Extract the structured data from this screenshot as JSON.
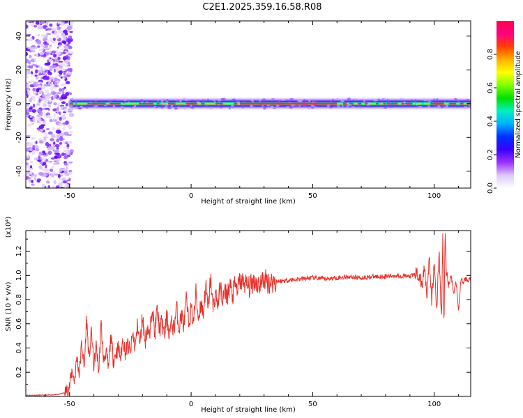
{
  "figure_title": "C2E1.2025.359.16.58.R08",
  "chart_data": [
    {
      "type": "heatmap",
      "title": "C2E1.2025.359.16.58.R08",
      "xlabel": "Height of straight line (km)",
      "ylabel": "Frequency (Hz)",
      "xlim": [
        -68,
        115
      ],
      "ylim": [
        -50,
        49
      ],
      "x_ticks": [
        -50,
        0,
        50,
        100
      ],
      "x_tick_labels": [
        "-50",
        "0",
        "50",
        "100"
      ],
      "y_ticks": [
        40,
        20,
        0,
        -20,
        -40
      ],
      "y_tick_labels": [
        "40",
        "20",
        "0",
        "-20",
        "-40"
      ],
      "signal_track": {
        "frequency_hz": 0,
        "start_km": -50,
        "end_km": 115,
        "description_noise_region_km": [
          -68,
          -50
        ]
      },
      "colorbar": {
        "label": "Normalized spectral amplitude",
        "range": [
          0,
          1
        ],
        "ticks": [
          0.0,
          0.2,
          0.4,
          0.6,
          0.8
        ],
        "tick_labels": [
          "0.0",
          "0.2",
          "0.4",
          "0.6",
          "0.8"
        ],
        "colors": [
          "#ffffff",
          "#dcc8ff",
          "#9b30ff",
          "#3a00ff",
          "#0030ff",
          "#00b0ff",
          "#00f0c0",
          "#00e000",
          "#80ff00",
          "#ffff00",
          "#ffb000",
          "#ff4000",
          "#ff0080",
          "#ff0050"
        ]
      }
    },
    {
      "type": "line",
      "xlabel": "Height of straight line (km)",
      "ylabel": "SNR (10 * v/v)",
      "y_multiplier": "(x10⁴)",
      "xlim": [
        -68,
        115
      ],
      "ylim": [
        0,
        1.37
      ],
      "x_ticks": [
        -50,
        0,
        50,
        100
      ],
      "x_tick_labels": [
        "-50",
        "0",
        "50",
        "100"
      ],
      "y_ticks": [
        0.2,
        0.4,
        0.6,
        0.8,
        1.0,
        1.2
      ],
      "y_tick_labels": [
        "0.2",
        "0.4",
        "0.6",
        "0.8",
        "1.0",
        "1.2"
      ],
      "series": [
        {
          "name": "SNR",
          "color": "#e8302a",
          "x": [
            -68,
            -60,
            -55,
            -52,
            -50,
            -49,
            -48,
            -47,
            -46,
            -45,
            -44,
            -43,
            -42,
            -41,
            -40,
            -39,
            -38,
            -37,
            -36,
            -35,
            -34,
            -33,
            -32,
            -31,
            -30,
            -29,
            -28,
            -27,
            -26,
            -25,
            -24,
            -23,
            -22,
            -21,
            -20,
            -19,
            -18,
            -17,
            -16,
            -15,
            -14,
            -13,
            -12,
            -11,
            -10,
            -9,
            -8,
            -7,
            -6,
            -5,
            -4,
            -3,
            -2,
            -1,
            0,
            1,
            2,
            3,
            4,
            5,
            6,
            7,
            8,
            9,
            10,
            11,
            12,
            13,
            14,
            15,
            16,
            17,
            18,
            19,
            20,
            22,
            24,
            26,
            28,
            30,
            32,
            35,
            40,
            45,
            50,
            55,
            60,
            65,
            70,
            75,
            80,
            85,
            90,
            93,
            95,
            96,
            97,
            98,
            99,
            100,
            101,
            102,
            103,
            103.5,
            104,
            104.5,
            105,
            106,
            107,
            108,
            109,
            110,
            111,
            112,
            113,
            114,
            115
          ],
          "y": [
            0.01,
            0.01,
            0.015,
            0.03,
            0.08,
            0.22,
            0.12,
            0.33,
            0.18,
            0.45,
            0.22,
            0.65,
            0.3,
            0.55,
            0.25,
            0.42,
            0.2,
            0.6,
            0.28,
            0.38,
            0.22,
            0.5,
            0.3,
            0.35,
            0.4,
            0.32,
            0.48,
            0.35,
            0.43,
            0.36,
            0.52,
            0.4,
            0.6,
            0.42,
            0.68,
            0.44,
            0.58,
            0.48,
            0.78,
            0.5,
            0.72,
            0.55,
            0.62,
            0.5,
            0.66,
            0.52,
            0.6,
            0.56,
            0.75,
            0.55,
            0.68,
            0.58,
            0.8,
            0.6,
            0.72,
            0.62,
            0.86,
            0.64,
            0.78,
            0.68,
            0.92,
            0.7,
            0.99,
            0.72,
            0.85,
            0.76,
            0.9,
            0.8,
            0.86,
            0.84,
            0.93,
            0.82,
            0.92,
            0.88,
            0.95,
            0.94,
            0.9,
            0.96,
            0.92,
            0.97,
            0.94,
            0.95,
            0.96,
            0.97,
            0.98,
            0.97,
            0.98,
            0.99,
            0.98,
            0.99,
            0.99,
            1.0,
            0.99,
            1.02,
            0.92,
            1.08,
            0.85,
            1.12,
            0.78,
            1.1,
            0.7,
            1.22,
            0.6,
            1.34,
            0.56,
            1.37,
            1.0,
            0.92,
            1.0,
            0.85,
            0.95,
            0.72,
            0.96,
            0.95,
            0.97,
            0.96,
            0.97
          ]
        }
      ]
    }
  ]
}
